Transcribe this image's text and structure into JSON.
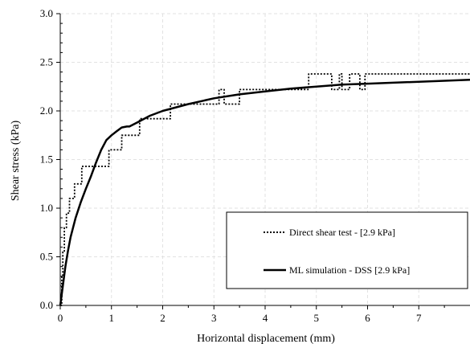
{
  "chart_data": {
    "type": "line",
    "xlabel": "Horizontal displacement (mm)",
    "ylabel": "Shear stress (kPa)",
    "xlim": [
      0,
      8
    ],
    "ylim": [
      0,
      3
    ],
    "x_ticks": [
      "0",
      "1",
      "2",
      "3",
      "4",
      "5",
      "6",
      "7"
    ],
    "y_ticks": [
      "0.0",
      "0.5",
      "1.0",
      "1.5",
      "2.0",
      "2.5",
      "3.0"
    ],
    "grid": true,
    "legend_position": "lower-right",
    "series": [
      {
        "name": "Direct shear test - [2.9 kPa]",
        "style": "dotted",
        "color": "#000000",
        "x": [
          0.0,
          0.03,
          0.03,
          0.05,
          0.05,
          0.08,
          0.08,
          0.12,
          0.12,
          0.18,
          0.18,
          0.28,
          0.28,
          0.42,
          0.42,
          0.62,
          0.62,
          0.95,
          0.95,
          1.2,
          1.2,
          1.55,
          1.55,
          2.15,
          2.15,
          2.6,
          2.6,
          3.1,
          3.1,
          3.2,
          3.2,
          3.5,
          3.5,
          4.85,
          4.85,
          4.95,
          4.95,
          5.3,
          5.3,
          5.45,
          5.45,
          5.5,
          5.5,
          5.65,
          5.65,
          5.85,
          5.85,
          5.95,
          5.95,
          8.0
        ],
        "y": [
          0.0,
          0.0,
          0.3,
          0.3,
          0.55,
          0.55,
          0.8,
          0.8,
          0.95,
          0.95,
          1.1,
          1.1,
          1.25,
          1.25,
          1.43,
          1.43,
          1.43,
          1.43,
          1.6,
          1.6,
          1.75,
          1.75,
          1.92,
          1.92,
          2.07,
          2.07,
          2.07,
          2.07,
          2.22,
          2.22,
          2.07,
          2.07,
          2.22,
          2.22,
          2.38,
          2.38,
          2.38,
          2.38,
          2.22,
          2.22,
          2.38,
          2.38,
          2.22,
          2.22,
          2.38,
          2.38,
          2.22,
          2.22,
          2.38,
          2.38
        ]
      },
      {
        "name": "ML simulation - DSS [2.9 kPa]",
        "style": "solid",
        "color": "#000000",
        "x": [
          0.0,
          0.05,
          0.1,
          0.15,
          0.2,
          0.3,
          0.4,
          0.5,
          0.6,
          0.7,
          0.8,
          0.9,
          1.0,
          1.1,
          1.2,
          1.3,
          1.35,
          1.5,
          1.75,
          2.0,
          2.5,
          3.0,
          3.5,
          4.0,
          4.5,
          5.0,
          5.5,
          6.0,
          6.5,
          7.0,
          7.5,
          8.0
        ],
        "y": [
          0.0,
          0.2,
          0.4,
          0.56,
          0.7,
          0.9,
          1.06,
          1.2,
          1.33,
          1.47,
          1.6,
          1.7,
          1.75,
          1.79,
          1.83,
          1.84,
          1.84,
          1.88,
          1.95,
          2.0,
          2.07,
          2.13,
          2.17,
          2.2,
          2.23,
          2.25,
          2.27,
          2.28,
          2.29,
          2.3,
          2.31,
          2.32
        ]
      }
    ]
  }
}
